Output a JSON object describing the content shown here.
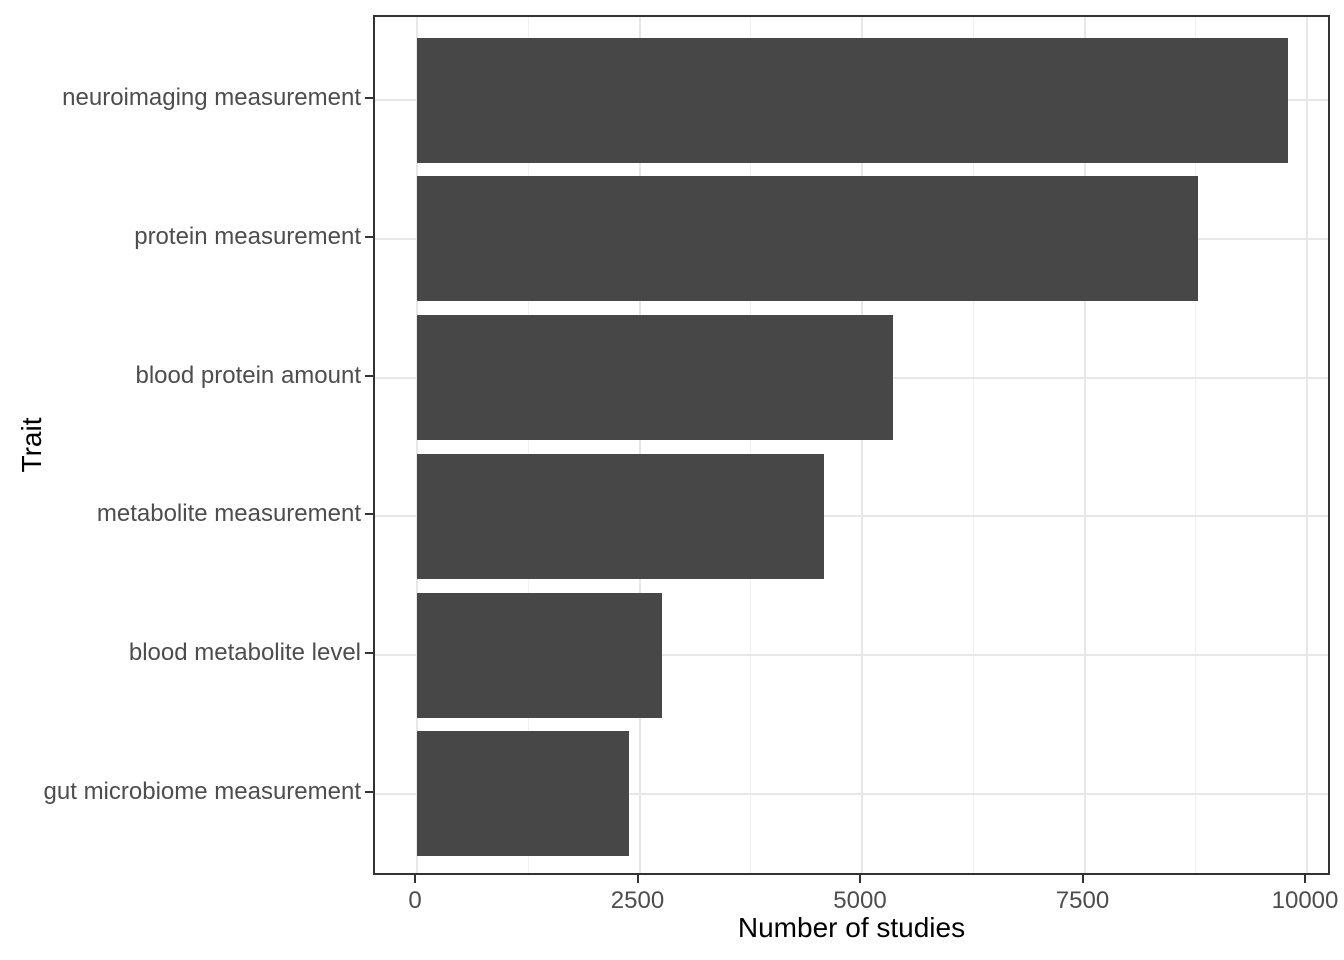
{
  "chart_data": {
    "type": "bar",
    "orientation": "horizontal",
    "title": "",
    "xlabel": "Number of studies",
    "ylabel": "Trait",
    "categories": [
      "neuroimaging measurement",
      "protein measurement",
      "blood protein amount",
      "metabolite measurement",
      "blood metabolite level",
      "gut microbiome measurement"
    ],
    "values": [
      9790,
      8770,
      5350,
      4570,
      2750,
      2380
    ],
    "x_ticks": [
      0,
      2500,
      5000,
      7500,
      10000
    ],
    "x_tick_labels": [
      "0",
      "2500",
      "5000",
      "7500",
      "10000"
    ],
    "x_minor_ticks": [
      1250,
      3750,
      6250,
      8750
    ],
    "xlim": [
      0,
      10000
    ],
    "grid": true,
    "legend": false,
    "colors": {
      "bar_fill": "#474747",
      "grid_major": "#e7e7e7",
      "grid_minor": "#f0f0f0",
      "panel_border": "#333333",
      "tick_mark": "#333333",
      "axis_text": "#4d4d4d",
      "axis_title": "#000000",
      "background": "#ffffff"
    }
  }
}
